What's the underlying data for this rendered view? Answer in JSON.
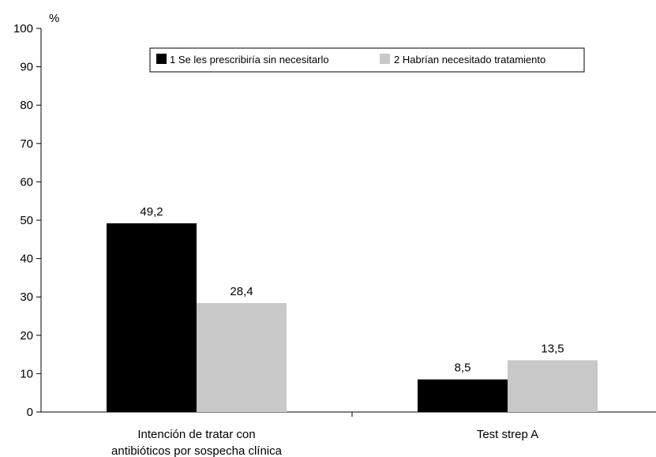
{
  "chart_data": {
    "type": "bar",
    "y_unit": "%",
    "ylim": [
      0,
      100
    ],
    "y_ticks": [
      0,
      10,
      20,
      30,
      40,
      50,
      60,
      70,
      80,
      90,
      100
    ],
    "grid": false,
    "legend_position": "top",
    "categories": [
      [
        "Intención de tratar con",
        "antibióticos por sospecha clínica"
      ],
      [
        "Test strep A"
      ]
    ],
    "series": [
      {
        "name": "1 Se les prescribiría sin necesitarlo",
        "color": "#000000",
        "values": [
          49.2,
          8.5
        ],
        "labels": [
          "49,2",
          "8,5"
        ]
      },
      {
        "name": "2 Habrían necesitado tratamiento",
        "color": "#c8c8c8",
        "values": [
          28.4,
          13.5
        ],
        "labels": [
          "28,4",
          "13,5"
        ]
      }
    ]
  }
}
